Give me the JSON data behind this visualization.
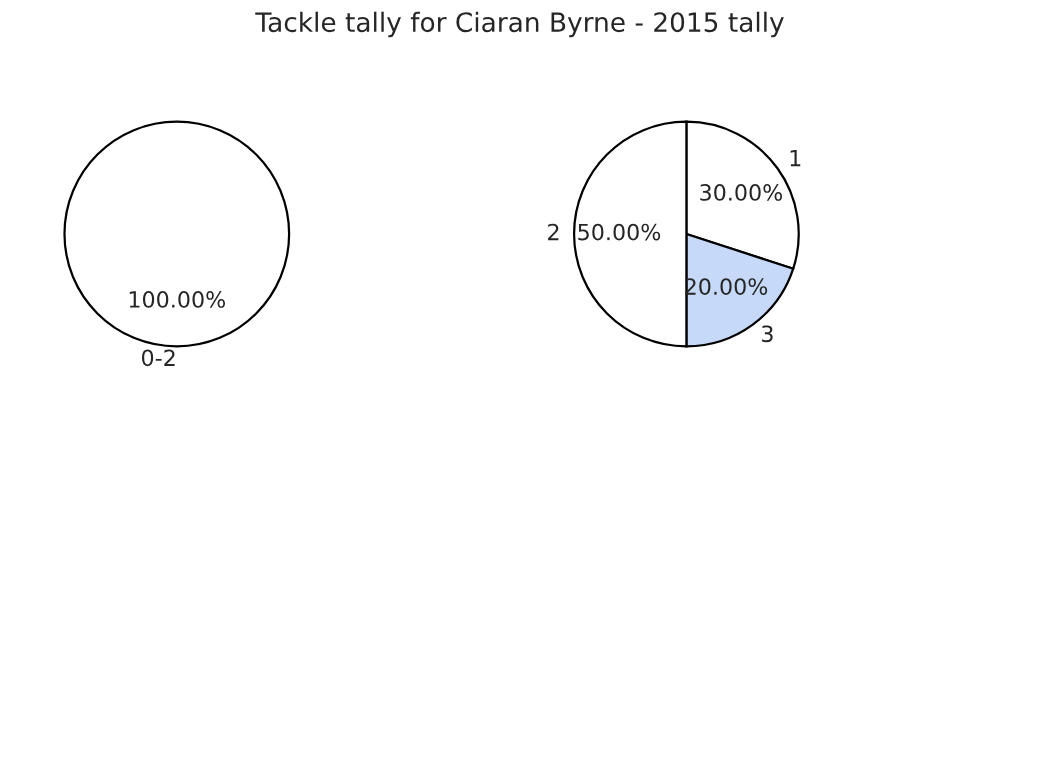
{
  "chart_data": [
    {
      "type": "pie",
      "categories": [
        "0-2"
      ],
      "values": [
        100
      ],
      "colors": [
        "#ffffff"
      ],
      "value_labels": [
        "100.00%"
      ]
    },
    {
      "type": "pie",
      "title": "Tackle tally for Ciaran Byrne - 2015 tally",
      "categories": [
        "1",
        "3",
        "2"
      ],
      "values": [
        30,
        20,
        50
      ],
      "colors": [
        "#ffffff",
        "#c6d9f8",
        "#ffffff"
      ],
      "value_labels": [
        "30.00%",
        "20.00%",
        "50.00%"
      ]
    }
  ]
}
